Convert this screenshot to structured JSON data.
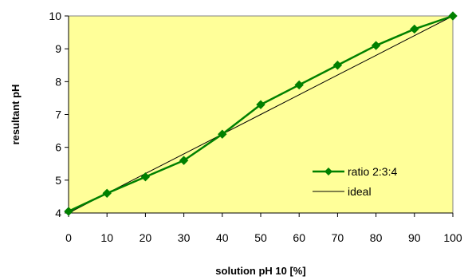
{
  "chart_data": {
    "type": "line",
    "xlabel": "solution pH 10 [%]",
    "ylabel": "resultant pH",
    "x": [
      0,
      10,
      20,
      30,
      40,
      50,
      60,
      70,
      80,
      90,
      100
    ],
    "xlim": [
      0,
      100
    ],
    "ylim": [
      4,
      10
    ],
    "xticks": [
      "0",
      "10",
      "20",
      "30",
      "40",
      "50",
      "60",
      "70",
      "80",
      "90",
      "100"
    ],
    "yticks": [
      "4",
      "5",
      "6",
      "7",
      "8",
      "9",
      "10"
    ],
    "grid": false,
    "legend_position": "right",
    "plot_background": "#ffff99",
    "series": [
      {
        "name": "ratio 2:3:4",
        "color": "#008000",
        "marker": "diamond",
        "values": [
          4.05,
          4.6,
          5.1,
          5.6,
          6.4,
          7.3,
          7.9,
          8.5,
          9.1,
          9.6,
          10.0
        ]
      },
      {
        "name": "ideal",
        "color": "#000000",
        "marker": "none",
        "values": [
          4.0,
          4.6,
          5.2,
          5.8,
          6.4,
          7.0,
          7.6,
          8.2,
          8.8,
          9.4,
          10.0
        ]
      }
    ]
  }
}
